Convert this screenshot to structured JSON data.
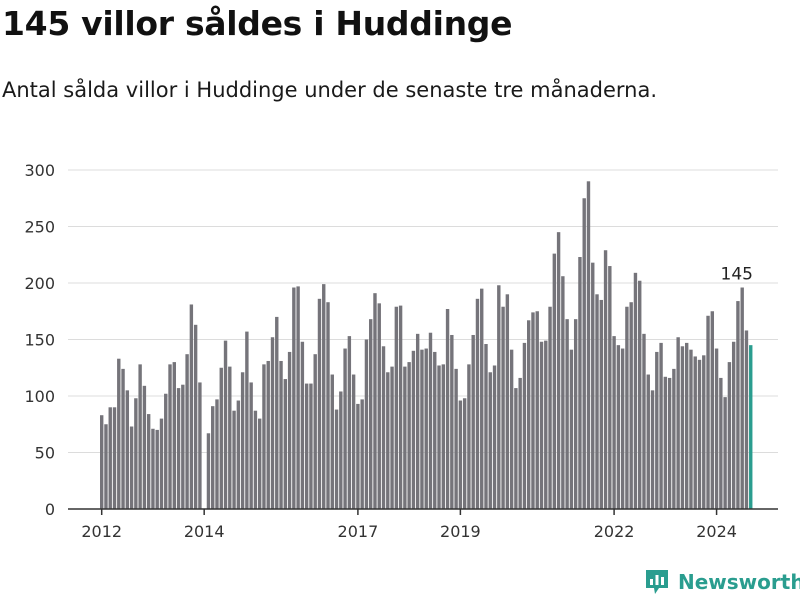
{
  "header": {
    "title": "145 villor såldes i Huddinge",
    "subtitle": "Antal sålda villor i Huddinge under de senaste tre månaderna."
  },
  "brand": {
    "name": "Newsworthy",
    "color": "#2a9d8f"
  },
  "chart_data": {
    "type": "bar",
    "title": "145 villor såldes i Huddinge",
    "subtitle": "Antal sålda villor i Huddinge under de senaste tre månaderna.",
    "xlabel": "",
    "ylabel": "",
    "ylim": [
      0,
      300
    ],
    "yticks": [
      0,
      50,
      100,
      150,
      200,
      250,
      300
    ],
    "xticks": [
      {
        "label": "2012",
        "year": 2012
      },
      {
        "label": "2014",
        "year": 2014
      },
      {
        "label": "2017",
        "year": 2017
      },
      {
        "label": "2019",
        "year": 2019
      },
      {
        "label": "2022",
        "year": 2022
      },
      {
        "label": "2024",
        "year": 2024
      }
    ],
    "grid": true,
    "bar_color": "#75747a",
    "highlight_color": "#2a9d8f",
    "start": {
      "year": 2012,
      "month": 1
    },
    "values": [
      83,
      75,
      90,
      90,
      133,
      124,
      105,
      73,
      98,
      128,
      109,
      84,
      71,
      70,
      80,
      102,
      128,
      130,
      107,
      110,
      137,
      181,
      163,
      112,
      0,
      67,
      91,
      97,
      125,
      149,
      126,
      87,
      96,
      121,
      157,
      112,
      87,
      80,
      128,
      131,
      152,
      170,
      131,
      115,
      139,
      196,
      197,
      148,
      111,
      111,
      137,
      186,
      199,
      183,
      119,
      88,
      104,
      142,
      153,
      119,
      93,
      97,
      150,
      168,
      191,
      182,
      144,
      121,
      126,
      179,
      180,
      126,
      130,
      140,
      155,
      141,
      142,
      156,
      139,
      127,
      128,
      177,
      154,
      124,
      96,
      98,
      128,
      154,
      186,
      195,
      146,
      121,
      127,
      198,
      179,
      190,
      141,
      107,
      116,
      147,
      167,
      174,
      175,
      148,
      149,
      179,
      226,
      245,
      206,
      168,
      141,
      168,
      223,
      275,
      290,
      218,
      190,
      185,
      229,
      215,
      153,
      145,
      142,
      179,
      183,
      209,
      202,
      155,
      119,
      105,
      139,
      147,
      117,
      116,
      124,
      152,
      144,
      147,
      141,
      135,
      132,
      136,
      171,
      175,
      142,
      116,
      99,
      130,
      148,
      184,
      196,
      158,
      145
    ],
    "highlight_last": true,
    "annotation": {
      "label": "145",
      "value": 145
    }
  }
}
